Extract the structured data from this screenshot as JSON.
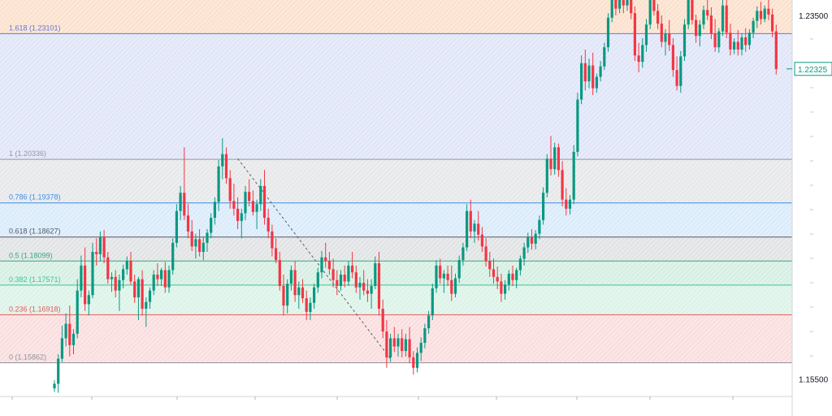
{
  "chart_data": {
    "type": "candlestick",
    "instrument_axis": {
      "tick_labels": [
        "1.23500",
        "1.15500"
      ],
      "ticks": [
        1.235,
        1.155
      ],
      "ylim": [
        1.1512,
        1.2384
      ]
    },
    "current_price": {
      "label": "1.22325",
      "value": 1.22325,
      "color": "#089981"
    },
    "fib_levels": [
      {
        "label": "1.618 (1.23101)",
        "value": 1.23101,
        "color": "#5b7bd5"
      },
      {
        "label": "1 (1.20336)",
        "value": 1.20336,
        "color": "#9598a1"
      },
      {
        "label": "0.786 (1.19378)",
        "value": 1.19378,
        "color": "#3d8ee6"
      },
      {
        "label": "0.618 (1.18627)",
        "value": 1.18627,
        "color": "#555a63"
      },
      {
        "label": "0.5 (1.18099)",
        "value": 1.18099,
        "color": "#36a77a"
      },
      {
        "label": "0.382 (1.17571)",
        "value": 1.17571,
        "color": "#3cc29a"
      },
      {
        "label": "0.236 (1.16918)",
        "value": 1.16918,
        "color": "#e8575a"
      },
      {
        "label": "0 (1.15862)",
        "value": 1.15862,
        "color": "#8f939c"
      }
    ],
    "fib_zones": [
      {
        "from": 1.23101,
        "to": 1.2384,
        "color": "#f7c9a6"
      },
      {
        "from": 1.20336,
        "to": 1.23101,
        "color": "#c6cff3"
      },
      {
        "from": 1.19378,
        "to": 1.20336,
        "color": "#d4d5d8"
      },
      {
        "from": 1.18627,
        "to": 1.19378,
        "color": "#bcdaf5"
      },
      {
        "from": 1.18099,
        "to": 1.18627,
        "color": "#c9ccd0"
      },
      {
        "from": 1.17571,
        "to": 1.18099,
        "color": "#b5e2cc"
      },
      {
        "from": 1.16918,
        "to": 1.17571,
        "color": "#bfe9d5"
      },
      {
        "from": 1.15862,
        "to": 1.16918,
        "color": "#f6c2c4"
      }
    ],
    "trend_line": {
      "from_index": 48,
      "to_index": 88,
      "from_price": 1.2035,
      "to_price": 1.1595
    },
    "colors": {
      "up": "#089981",
      "down": "#f23645"
    },
    "candles": [
      [
        1.153,
        1.1548,
        1.1522,
        1.154
      ],
      [
        1.154,
        1.1605,
        1.152,
        1.1595
      ],
      [
        1.1595,
        1.1668,
        1.1588,
        1.164
      ],
      [
        1.164,
        1.1695,
        1.1622,
        1.1672
      ],
      [
        1.1672,
        1.1712,
        1.16,
        1.1625
      ],
      [
        1.1625,
        1.166,
        1.1605,
        1.165
      ],
      [
        1.165,
        1.177,
        1.164,
        1.1745
      ],
      [
        1.1745,
        1.1822,
        1.173,
        1.18
      ],
      [
        1.18,
        1.184,
        1.17,
        1.1715
      ],
      [
        1.1715,
        1.1745,
        1.169,
        1.1735
      ],
      [
        1.1735,
        1.185,
        1.1728,
        1.183
      ],
      [
        1.183,
        1.186,
        1.18,
        1.1825
      ],
      [
        1.1825,
        1.1875,
        1.181,
        1.1862
      ],
      [
        1.1862,
        1.1878,
        1.1805,
        1.1818
      ],
      [
        1.1818,
        1.183,
        1.176,
        1.177
      ],
      [
        1.177,
        1.1785,
        1.1742,
        1.1775
      ],
      [
        1.1775,
        1.179,
        1.173,
        1.1745
      ],
      [
        1.1745,
        1.178,
        1.17,
        1.1768
      ],
      [
        1.1768,
        1.1802,
        1.175,
        1.1792
      ],
      [
        1.1792,
        1.182,
        1.178,
        1.181
      ],
      [
        1.181,
        1.183,
        1.1758,
        1.1765
      ],
      [
        1.1765,
        1.178,
        1.1718,
        1.173
      ],
      [
        1.173,
        1.1775,
        1.168,
        1.177
      ],
      [
        1.177,
        1.179,
        1.169,
        1.1705
      ],
      [
        1.1705,
        1.173,
        1.1665,
        1.172
      ],
      [
        1.172,
        1.1752,
        1.1705,
        1.1745
      ],
      [
        1.1745,
        1.179,
        1.1735,
        1.178
      ],
      [
        1.178,
        1.1805,
        1.1755,
        1.177
      ],
      [
        1.177,
        1.1795,
        1.1755,
        1.179
      ],
      [
        1.179,
        1.1808,
        1.174,
        1.1752
      ],
      [
        1.1752,
        1.18,
        1.174,
        1.179
      ],
      [
        1.179,
        1.186,
        1.178,
        1.185
      ],
      [
        1.185,
        1.1935,
        1.184,
        1.192
      ],
      [
        1.192,
        1.1975,
        1.19,
        1.196
      ],
      [
        1.196,
        1.206,
        1.19,
        1.191
      ],
      [
        1.191,
        1.1935,
        1.186,
        1.1875
      ],
      [
        1.1875,
        1.19,
        1.1832,
        1.1842
      ],
      [
        1.1842,
        1.187,
        1.1815,
        1.1858
      ],
      [
        1.1858,
        1.188,
        1.182,
        1.183
      ],
      [
        1.183,
        1.1862,
        1.1812,
        1.185
      ],
      [
        1.185,
        1.188,
        1.183,
        1.1872
      ],
      [
        1.1872,
        1.1915,
        1.186,
        1.1905
      ],
      [
        1.1905,
        1.195,
        1.189,
        1.194
      ],
      [
        1.194,
        1.2032,
        1.192,
        1.2018
      ],
      [
        1.2018,
        1.208,
        1.199,
        1.2045
      ],
      [
        1.2045,
        1.206,
        1.198,
        1.1992
      ],
      [
        1.1992,
        1.201,
        1.1925,
        1.1942
      ],
      [
        1.1942,
        1.198,
        1.191,
        1.1925
      ],
      [
        1.1925,
        1.195,
        1.188,
        1.1898
      ],
      [
        1.1898,
        1.1925,
        1.186,
        1.1915
      ],
      [
        1.1915,
        1.1975,
        1.19,
        1.1962
      ],
      [
        1.1962,
        1.199,
        1.193,
        1.1942
      ],
      [
        1.1942,
        1.1965,
        1.191,
        1.1918
      ],
      [
        1.1918,
        1.1945,
        1.188,
        1.1935
      ],
      [
        1.1935,
        1.199,
        1.192,
        1.1975
      ],
      [
        1.1975,
        1.201,
        1.189,
        1.1905
      ],
      [
        1.1905,
        1.1925,
        1.186,
        1.1875
      ],
      [
        1.1875,
        1.189,
        1.182,
        1.1838
      ],
      [
        1.1838,
        1.186,
        1.1805,
        1.1812
      ],
      [
        1.1812,
        1.183,
        1.1745,
        1.1755
      ],
      [
        1.1755,
        1.178,
        1.169,
        1.1712
      ],
      [
        1.1712,
        1.177,
        1.1695,
        1.176
      ],
      [
        1.176,
        1.18,
        1.1745,
        1.179
      ],
      [
        1.179,
        1.181,
        1.172,
        1.1735
      ],
      [
        1.1735,
        1.1765,
        1.1705,
        1.1752
      ],
      [
        1.1752,
        1.177,
        1.1718,
        1.1728
      ],
      [
        1.1728,
        1.1745,
        1.168,
        1.1698
      ],
      [
        1.1698,
        1.173,
        1.168,
        1.1718
      ],
      [
        1.1718,
        1.176,
        1.1705,
        1.1752
      ],
      [
        1.1752,
        1.1795,
        1.174,
        1.1785
      ],
      [
        1.1785,
        1.1832,
        1.1772,
        1.1818
      ],
      [
        1.1818,
        1.185,
        1.1795,
        1.181
      ],
      [
        1.181,
        1.183,
        1.178,
        1.1792
      ],
      [
        1.1792,
        1.1815,
        1.1752,
        1.1768
      ],
      [
        1.1768,
        1.179,
        1.1735,
        1.1755
      ],
      [
        1.1755,
        1.179,
        1.1745,
        1.178
      ],
      [
        1.178,
        1.18,
        1.1752,
        1.1765
      ],
      [
        1.1765,
        1.181,
        1.1755,
        1.18
      ],
      [
        1.18,
        1.183,
        1.1772,
        1.1785
      ],
      [
        1.1785,
        1.18,
        1.174,
        1.1752
      ],
      [
        1.1752,
        1.1775,
        1.1725,
        1.1762
      ],
      [
        1.1762,
        1.179,
        1.1735,
        1.1745
      ],
      [
        1.1745,
        1.177,
        1.172,
        1.1738
      ],
      [
        1.1738,
        1.177,
        1.1705,
        1.1755
      ],
      [
        1.1755,
        1.182,
        1.1748,
        1.1805
      ],
      [
        1.1805,
        1.183,
        1.169,
        1.1705
      ],
      [
        1.1705,
        1.1725,
        1.164,
        1.1655
      ],
      [
        1.1655,
        1.168,
        1.1575,
        1.1598
      ],
      [
        1.1598,
        1.165,
        1.1588,
        1.164
      ],
      [
        1.164,
        1.1665,
        1.161,
        1.1622
      ],
      [
        1.1622,
        1.165,
        1.16,
        1.164
      ],
      [
        1.164,
        1.166,
        1.1598,
        1.1612
      ],
      [
        1.1612,
        1.165,
        1.16,
        1.1638
      ],
      [
        1.1638,
        1.1665,
        1.1585,
        1.1598
      ],
      [
        1.1598,
        1.1612,
        1.156,
        1.1575
      ],
      [
        1.1575,
        1.162,
        1.1565,
        1.1608
      ],
      [
        1.1608,
        1.1642,
        1.159,
        1.163
      ],
      [
        1.163,
        1.1672,
        1.1618,
        1.1662
      ],
      [
        1.1662,
        1.17,
        1.165,
        1.169
      ],
      [
        1.169,
        1.176,
        1.168,
        1.175
      ],
      [
        1.175,
        1.1812,
        1.174,
        1.18
      ],
      [
        1.18,
        1.1815,
        1.176,
        1.1772
      ],
      [
        1.1772,
        1.179,
        1.174,
        1.1782
      ],
      [
        1.1782,
        1.18,
        1.1755,
        1.1768
      ],
      [
        1.1768,
        1.18,
        1.1722,
        1.1738
      ],
      [
        1.1738,
        1.1782,
        1.173,
        1.1772
      ],
      [
        1.1772,
        1.1822,
        1.1762,
        1.1812
      ],
      [
        1.1812,
        1.185,
        1.18,
        1.184
      ],
      [
        1.184,
        1.1935,
        1.1832,
        1.192
      ],
      [
        1.192,
        1.1945,
        1.186,
        1.1875
      ],
      [
        1.1875,
        1.19,
        1.185,
        1.1892
      ],
      [
        1.1892,
        1.192,
        1.1855,
        1.1868
      ],
      [
        1.1868,
        1.1885,
        1.183,
        1.1842
      ],
      [
        1.1842,
        1.186,
        1.1798,
        1.181
      ],
      [
        1.181,
        1.183,
        1.1775,
        1.1792
      ],
      [
        1.1792,
        1.1815,
        1.176,
        1.1775
      ],
      [
        1.1775,
        1.1798,
        1.1748,
        1.1765
      ],
      [
        1.1765,
        1.1782,
        1.172,
        1.1738
      ],
      [
        1.1738,
        1.1768,
        1.1725,
        1.1758
      ],
      [
        1.1758,
        1.179,
        1.1745,
        1.1782
      ],
      [
        1.1782,
        1.18,
        1.1755,
        1.1768
      ],
      [
        1.1768,
        1.1795,
        1.175,
        1.179
      ],
      [
        1.179,
        1.1822,
        1.1778,
        1.1815
      ],
      [
        1.1815,
        1.185,
        1.18,
        1.184
      ],
      [
        1.184,
        1.1872,
        1.1828,
        1.1862
      ],
      [
        1.1862,
        1.188,
        1.1835,
        1.1848
      ],
      [
        1.1848,
        1.1878,
        1.1836,
        1.187
      ],
      [
        1.187,
        1.191,
        1.1858,
        1.19
      ],
      [
        1.19,
        1.1972,
        1.189,
        1.196
      ],
      [
        1.196,
        1.2045,
        1.195,
        1.2035
      ],
      [
        1.2035,
        1.2085,
        1.1998,
        1.2012
      ],
      [
        1.2012,
        1.207,
        1.2,
        1.206
      ],
      [
        1.206,
        1.2068,
        1.1995,
        1.201
      ],
      [
        1.201,
        1.203,
        1.193,
        1.1945
      ],
      [
        1.1945,
        1.197,
        1.191,
        1.1925
      ],
      [
        1.1925,
        1.1955,
        1.1912,
        1.1945
      ],
      [
        1.1945,
        1.2065,
        1.1935,
        1.205
      ],
      [
        1.205,
        1.218,
        1.204,
        1.2165
      ],
      [
        1.2165,
        1.2262,
        1.2155,
        1.2245
      ],
      [
        1.2245,
        1.2275,
        1.2185,
        1.2205
      ],
      [
        1.2205,
        1.2255,
        1.219,
        1.224
      ],
      [
        1.224,
        1.2268,
        1.2175,
        1.219
      ],
      [
        1.219,
        1.2222,
        1.218,
        1.2215
      ],
      [
        1.2215,
        1.225,
        1.2205,
        1.2238
      ],
      [
        1.2238,
        1.229,
        1.223,
        1.228
      ],
      [
        1.228,
        1.2355,
        1.227,
        1.2345
      ],
      [
        1.2345,
        1.2398,
        1.2335,
        1.2385
      ],
      [
        1.2385,
        1.2398,
        1.235,
        1.2365
      ],
      [
        1.2365,
        1.2398,
        1.2355,
        1.239
      ],
      [
        1.239,
        1.2398,
        1.2355,
        1.2372
      ],
      [
        1.2372,
        1.2398,
        1.236,
        1.2392
      ],
      [
        1.2392,
        1.2398,
        1.2342,
        1.2355
      ],
      [
        1.2355,
        1.237,
        1.225,
        1.2262
      ],
      [
        1.2262,
        1.229,
        1.2225,
        1.2248
      ],
      [
        1.2248,
        1.23,
        1.2235,
        1.2285
      ],
      [
        1.2285,
        1.2342,
        1.227,
        1.233
      ],
      [
        1.233,
        1.2398,
        1.232,
        1.239
      ],
      [
        1.239,
        1.2398,
        1.235,
        1.236
      ],
      [
        1.236,
        1.2375,
        1.232,
        1.2332
      ],
      [
        1.2332,
        1.235,
        1.228,
        1.2292
      ],
      [
        1.2292,
        1.232,
        1.2262,
        1.231
      ],
      [
        1.231,
        1.234,
        1.2272,
        1.2285
      ],
      [
        1.2285,
        1.23,
        1.2215,
        1.223
      ],
      [
        1.223,
        1.226,
        1.2185,
        1.2195
      ],
      [
        1.2195,
        1.2272,
        1.218,
        1.226
      ],
      [
        1.226,
        1.2342,
        1.225,
        1.233
      ],
      [
        1.233,
        1.2398,
        1.232,
        1.2388
      ],
      [
        1.2388,
        1.2398,
        1.233,
        1.234
      ],
      [
        1.234,
        1.2352,
        1.229,
        1.2305
      ],
      [
        1.2305,
        1.234,
        1.2282,
        1.233
      ],
      [
        1.233,
        1.2372,
        1.232,
        1.2362
      ],
      [
        1.2362,
        1.2398,
        1.234,
        1.235
      ],
      [
        1.235,
        1.2368,
        1.2298,
        1.231
      ],
      [
        1.231,
        1.2342,
        1.227,
        1.228
      ],
      [
        1.228,
        1.2322,
        1.2268,
        1.2315
      ],
      [
        1.2315,
        1.2385,
        1.2305,
        1.2372
      ],
      [
        1.2372,
        1.239,
        1.23,
        1.2312
      ],
      [
        1.2312,
        1.2332,
        1.2262,
        1.2275
      ],
      [
        1.2275,
        1.23,
        1.2265,
        1.2292
      ],
      [
        1.2292,
        1.2318,
        1.2262,
        1.2275
      ],
      [
        1.2275,
        1.231,
        1.2262,
        1.2302
      ],
      [
        1.2302,
        1.2322,
        1.227,
        1.2285
      ],
      [
        1.2285,
        1.232,
        1.2275,
        1.2312
      ],
      [
        1.2312,
        1.2345,
        1.23,
        1.2338
      ],
      [
        1.2338,
        1.237,
        1.2322,
        1.236
      ],
      [
        1.236,
        1.238,
        1.233,
        1.2342
      ],
      [
        1.2342,
        1.2372,
        1.2335,
        1.2365
      ],
      [
        1.2365,
        1.239,
        1.234,
        1.2352
      ],
      [
        1.2352,
        1.2365,
        1.2302,
        1.2315
      ],
      [
        1.2315,
        1.233,
        1.222,
        1.2232
      ]
    ]
  }
}
